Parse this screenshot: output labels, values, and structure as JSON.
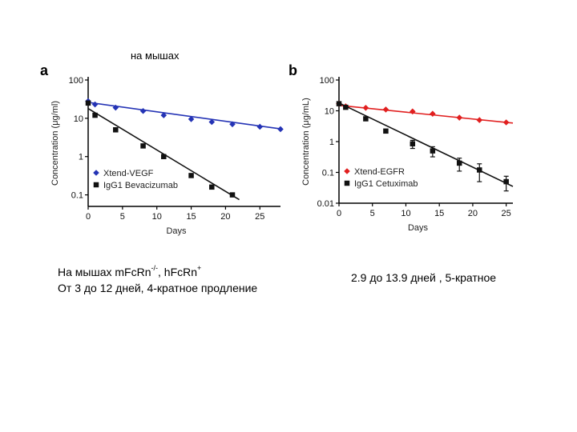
{
  "header": {
    "label": "на мышах"
  },
  "captions": {
    "left_line1_prefix": "На мышах mFcRn",
    "left_line1_sup1": "-/-",
    "left_line1_middle": ", hFcRn",
    "left_line1_sup2": "+",
    "left_line2": "От 3 до 12 дней, 4-кратное продление",
    "right": "2.9 до 13.9 дней , 5-кратное"
  },
  "chart_data": [
    {
      "panel": "a",
      "type": "scatter",
      "log_y": true,
      "xlabel": "Days",
      "ylabel": "Concentration (μg/ml)",
      "xlim": [
        0,
        28
      ],
      "ylim": [
        0.05,
        100
      ],
      "xticks": [
        "0",
        "5",
        "10",
        "15",
        "20",
        "25"
      ],
      "yticks": [
        "0.1",
        "1",
        "10",
        "100"
      ],
      "legend_position": "bottom-left",
      "series": [
        {
          "name": "Xtend-VEGF",
          "color": "#2433b5",
          "marker": "diamond",
          "x": [
            0,
            1,
            4,
            8,
            11,
            15,
            18,
            21,
            25,
            28
          ],
          "y": [
            28,
            23,
            19,
            15.5,
            12,
            9.5,
            8,
            7,
            6,
            5.2
          ],
          "fit": {
            "x": [
              0,
              28
            ],
            "y": [
              26,
              5.3
            ]
          }
        },
        {
          "name": "IgG1 Bevacizumab",
          "color": "#111111",
          "marker": "square",
          "x": [
            0,
            1,
            4,
            8,
            11,
            15,
            18,
            21
          ],
          "y": [
            25,
            12,
            5,
            1.9,
            1.0,
            0.32,
            0.16,
            0.1
          ],
          "fit": {
            "x": [
              0,
              22
            ],
            "y": [
              18,
              0.075
            ]
          }
        }
      ]
    },
    {
      "panel": "b",
      "type": "scatter",
      "log_y": true,
      "xlabel": "Days",
      "ylabel": "Concentration (μg/mL)",
      "xlim": [
        0,
        26
      ],
      "ylim": [
        0.01,
        100
      ],
      "xticks": [
        "0",
        "5",
        "10",
        "15",
        "20",
        "25"
      ],
      "yticks": [
        "0.01",
        "0.1",
        "1",
        "10",
        "100"
      ],
      "legend_position": "bottom-left",
      "series": [
        {
          "name": "Xtend-EGFR",
          "color": "#e11f1f",
          "marker": "diamond",
          "x": [
            0,
            1,
            4,
            7,
            11,
            14,
            18,
            21,
            25
          ],
          "y": [
            17,
            14,
            12.5,
            11,
            9.5,
            8,
            6,
            5,
            4.2
          ],
          "fit": {
            "x": [
              0,
              26
            ],
            "y": [
              15,
              4.0
            ]
          }
        },
        {
          "name": "IgG1 Cetuximab",
          "color": "#111111",
          "marker": "square",
          "x": [
            0,
            1,
            4,
            7,
            11,
            14,
            18,
            21,
            25
          ],
          "y": [
            17,
            13,
            5.5,
            2.2,
            0.85,
            0.5,
            0.2,
            0.12,
            0.05
          ],
          "err": [
            0,
            0,
            0,
            0,
            0.25,
            0.18,
            0.09,
            0.07,
            0.025
          ],
          "fit": {
            "x": [
              0,
              26
            ],
            "y": [
              18,
              0.035
            ]
          }
        }
      ]
    }
  ]
}
